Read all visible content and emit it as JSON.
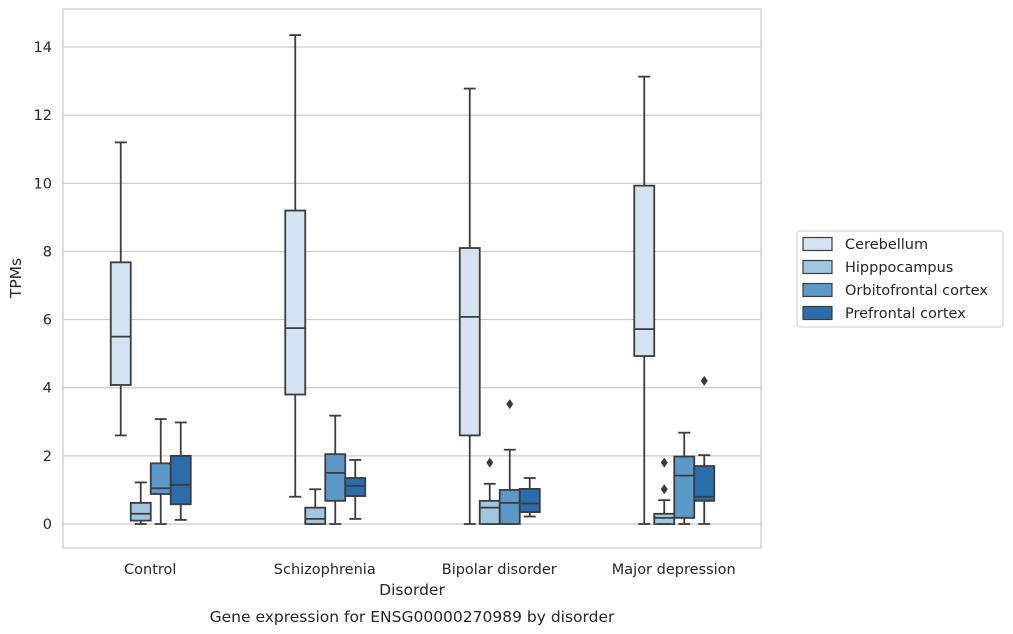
{
  "caption": "Gene expression for ENSG00000270989 by disorder",
  "chart_data": {
    "type": "box",
    "xlabel": "Disorder",
    "ylabel": "TPMs",
    "ylim": [
      -0.7,
      15.1
    ],
    "yticks": [
      0,
      2,
      4,
      6,
      8,
      10,
      12,
      14
    ],
    "grid": "horizontal",
    "legend_position": "right",
    "categories": [
      "Control",
      "Schizophrenia",
      "Bipolar disorder",
      "Major depression"
    ],
    "series": [
      {
        "name": "Cerebellum",
        "color": "#d4e3f2",
        "boxes": [
          {
            "whisker_low": 2.6,
            "q1": 4.08,
            "median": 5.5,
            "q3": 7.68,
            "whisker_high": 11.2,
            "outliers": []
          },
          {
            "whisker_low": 0.8,
            "q1": 3.8,
            "median": 5.75,
            "q3": 9.2,
            "whisker_high": 14.35,
            "outliers": []
          },
          {
            "whisker_low": 0.0,
            "q1": 2.6,
            "median": 6.08,
            "q3": 8.1,
            "whisker_high": 12.78,
            "outliers": []
          },
          {
            "whisker_low": 0.0,
            "q1": 4.93,
            "median": 5.72,
            "q3": 9.93,
            "whisker_high": 13.13,
            "outliers": []
          }
        ]
      },
      {
        "name": "Hipppocampus",
        "color": "#9fc8e0",
        "boxes": [
          {
            "whisker_low": 0.0,
            "q1": 0.1,
            "median": 0.3,
            "q3": 0.62,
            "whisker_high": 1.22,
            "outliers": []
          },
          {
            "whisker_low": 0.0,
            "q1": 0.0,
            "median": 0.15,
            "q3": 0.48,
            "whisker_high": 1.02,
            "outliers": []
          },
          {
            "whisker_low": 0.0,
            "q1": 0.0,
            "median": 0.48,
            "q3": 0.68,
            "whisker_high": 1.18,
            "outliers": [
              1.8
            ]
          },
          {
            "whisker_low": 0.0,
            "q1": 0.0,
            "median": 0.18,
            "q3": 0.3,
            "whisker_high": 0.7,
            "outliers": [
              1.02,
              1.8
            ]
          }
        ]
      },
      {
        "name": "Orbitofrontal cortex",
        "color": "#5b9ac8",
        "boxes": [
          {
            "whisker_low": 0.0,
            "q1": 0.88,
            "median": 1.05,
            "q3": 1.78,
            "whisker_high": 3.08,
            "outliers": []
          },
          {
            "whisker_low": 0.0,
            "q1": 0.68,
            "median": 1.5,
            "q3": 2.05,
            "whisker_high": 3.18,
            "outliers": []
          },
          {
            "whisker_low": 0.0,
            "q1": 0.0,
            "median": 0.62,
            "q3": 1.0,
            "whisker_high": 2.18,
            "outliers": [
              3.52
            ]
          },
          {
            "whisker_low": 0.0,
            "q1": 0.18,
            "median": 1.42,
            "q3": 1.98,
            "whisker_high": 2.68,
            "outliers": []
          }
        ]
      },
      {
        "name": "Prefrontal cortex",
        "color": "#2a6cac",
        "boxes": [
          {
            "whisker_low": 0.12,
            "q1": 0.58,
            "median": 1.15,
            "q3": 2.0,
            "whisker_high": 2.98,
            "outliers": []
          },
          {
            "whisker_low": 0.15,
            "q1": 0.82,
            "median": 1.12,
            "q3": 1.35,
            "whisker_high": 1.88,
            "outliers": []
          },
          {
            "whisker_low": 0.22,
            "q1": 0.35,
            "median": 0.6,
            "q3": 1.03,
            "whisker_high": 1.35,
            "outliers": []
          },
          {
            "whisker_low": 0.0,
            "q1": 0.68,
            "median": 0.8,
            "q3": 1.7,
            "whisker_high": 2.02,
            "outliers": [
              4.2
            ]
          }
        ]
      }
    ]
  }
}
